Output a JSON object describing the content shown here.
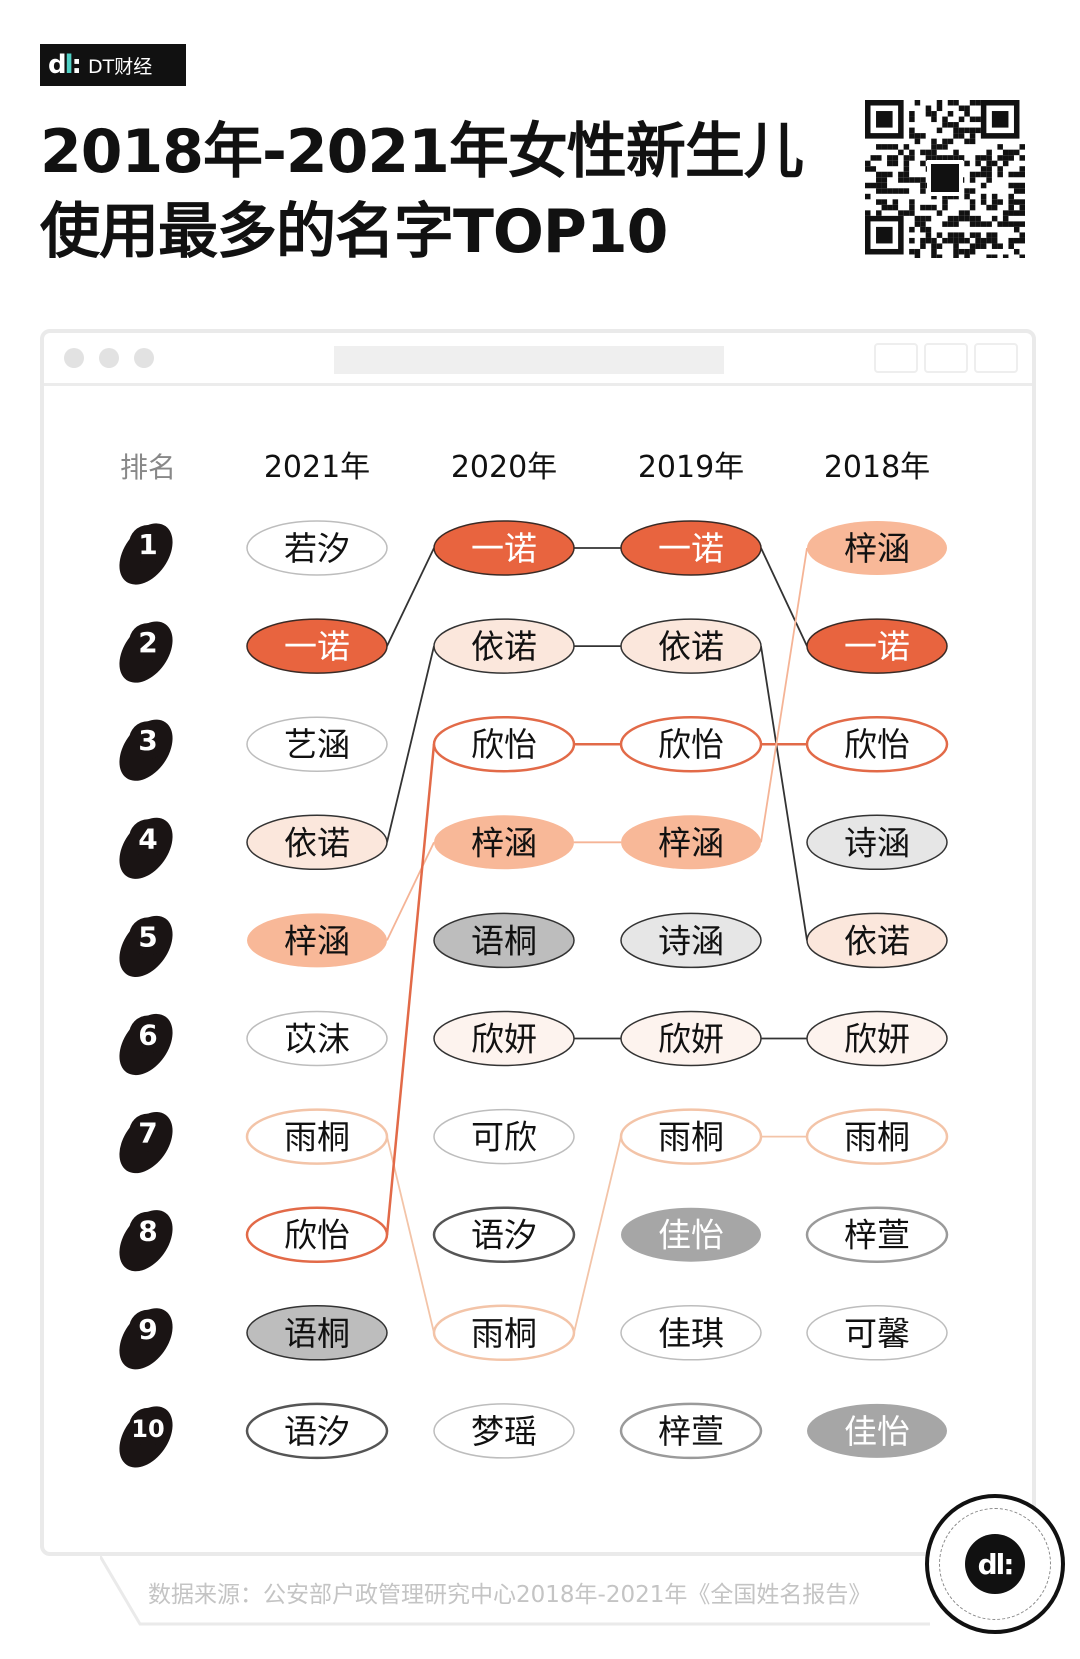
{
  "brand": {
    "logo_mark": "dt",
    "logo_text": "DT财经"
  },
  "title": {
    "line1": "2018年-2021年女性新生儿",
    "line2": "使用最多的名字TOP10"
  },
  "source": "数据来源：公安部户政管理研究中心2018年-2021年《全国姓名报告》",
  "chart_data": {
    "type": "table",
    "rank_header": "排名",
    "columns": [
      "2021年",
      "2020年",
      "2019年",
      "2018年"
    ],
    "ranks": [
      "1",
      "2",
      "3",
      "4",
      "5",
      "6",
      "7",
      "8",
      "9",
      "10"
    ],
    "names": [
      [
        "若汐",
        "一诺",
        "艺涵",
        "依诺",
        "梓涵",
        "苡沫",
        "雨桐",
        "欣怡",
        "语桐",
        "语汐"
      ],
      [
        "一诺",
        "依诺",
        "欣怡",
        "梓涵",
        "语桐",
        "欣妍",
        "可欣",
        "语汐",
        "雨桐",
        "梦瑶"
      ],
      [
        "一诺",
        "依诺",
        "欣怡",
        "梓涵",
        "诗涵",
        "欣妍",
        "雨桐",
        "佳怡",
        "佳琪",
        "梓萱"
      ],
      [
        "梓涵",
        "一诺",
        "欣怡",
        "诗涵",
        "依诺",
        "欣妍",
        "雨桐",
        "梓萱",
        "可馨",
        "佳怡"
      ]
    ],
    "linked_names": [
      "一诺",
      "依诺",
      "欣怡",
      "梓涵",
      "欣妍",
      "雨桐"
    ],
    "styles": {
      "一诺": {
        "fill": "#e8643f",
        "stroke": "#3a2a25",
        "text": "#ffffff",
        "link": "#333333"
      },
      "依诺": {
        "fill": "#fbe7dc",
        "stroke": "#333333",
        "text": "#111111",
        "link": "#333333"
      },
      "欣怡": {
        "fill": "#ffffff",
        "stroke": "#e26a48",
        "text": "#111111",
        "link": "#e26a48"
      },
      "梓涵": {
        "fill": "#f8b898",
        "stroke": "none",
        "text": "#111111",
        "link": "#f5b496"
      },
      "欣妍": {
        "fill": "#fdf3ee",
        "stroke": "#333333",
        "text": "#111111",
        "link": "#333333"
      },
      "雨桐": {
        "fill": "#ffffff",
        "stroke": "#f3c4a8",
        "text": "#111111",
        "link": "#f3c4a8"
      },
      "语桐": {
        "fill": "#bdbdbd",
        "stroke": "#333333",
        "text": "#111111"
      },
      "诗涵": {
        "fill": "#e6e6e6",
        "stroke": "#333333",
        "text": "#111111"
      },
      "佳怡": {
        "fill": "#a6a6a6",
        "stroke": "none",
        "text": "#ffffff"
      },
      "梓萱": {
        "fill": "#ffffff",
        "stroke": "#9a9a9a",
        "text": "#111111"
      },
      "语汐": {
        "fill": "#ffffff",
        "stroke": "#555555",
        "text": "#111111"
      },
      "default": {
        "fill": "#ffffff",
        "stroke": "#bdbdbd",
        "text": "#111111"
      }
    }
  }
}
